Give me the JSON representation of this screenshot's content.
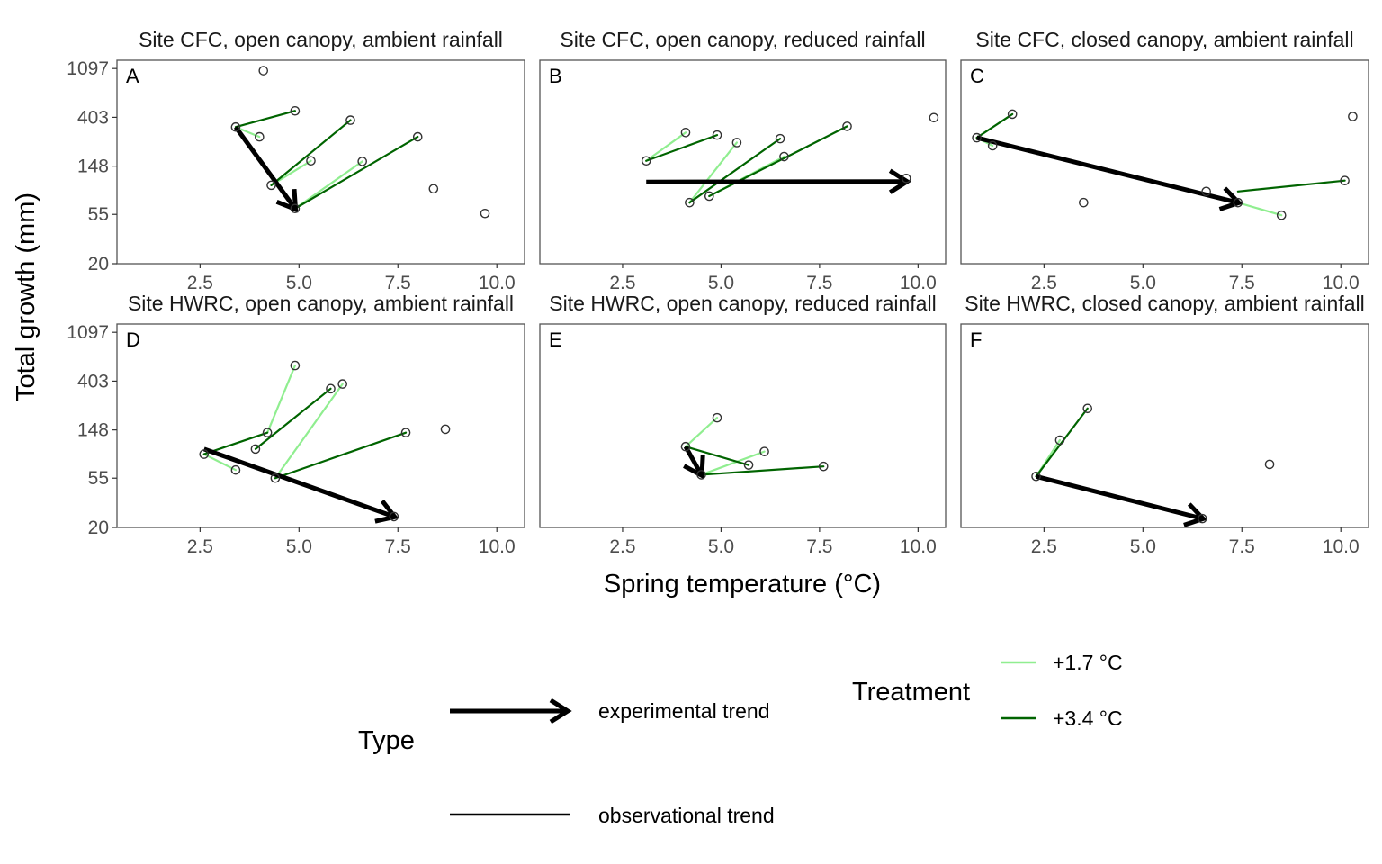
{
  "figure": {
    "xlabel": "Spring temperature (°C)",
    "ylabel": "Total growth (mm)"
  },
  "legend": {
    "type_title": "Type",
    "type_items": [
      "experimental trend",
      "observational trend"
    ],
    "treatment_title": "Treatment",
    "treatment_items": [
      "+1.7 °C",
      "+3.4 °C"
    ]
  },
  "colors": {
    "light_green": "#90ee90",
    "dark_green": "#006400",
    "experimental_arrow": "#000000",
    "point_stroke": "#333333",
    "panel_border": "#555555"
  },
  "chart_data": [
    {
      "type": "scatter",
      "panel": "A",
      "title": "Site CFC, open canopy, ambient rainfall",
      "xlim": [
        0.4,
        10.7
      ],
      "ylim": [
        20,
        1300
      ],
      "y_scale": "log",
      "x_ticks": [
        "2.5",
        "5.0",
        "7.5",
        "10.0"
      ],
      "y_ticks": [
        "20",
        "55",
        "148",
        "403",
        "1097"
      ],
      "points": [
        [
          4.1,
          1050
        ],
        [
          3.4,
          330
        ],
        [
          4.0,
          270
        ],
        [
          4.9,
          460
        ],
        [
          6.3,
          380
        ],
        [
          5.3,
          165
        ],
        [
          6.6,
          163
        ],
        [
          4.3,
          100
        ],
        [
          4.9,
          62
        ],
        [
          8.0,
          270
        ],
        [
          8.4,
          93
        ],
        [
          9.7,
          56
        ]
      ],
      "light_segments": [
        [
          [
            3.4,
            330
          ],
          [
            4.0,
            270
          ]
        ],
        [
          [
            4.3,
            100
          ],
          [
            5.3,
            165
          ]
        ],
        [
          [
            4.9,
            62
          ],
          [
            6.6,
            163
          ]
        ]
      ],
      "dark_segments": [
        [
          [
            3.4,
            330
          ],
          [
            4.9,
            460
          ]
        ],
        [
          [
            4.3,
            100
          ],
          [
            6.3,
            380
          ]
        ],
        [
          [
            4.9,
            62
          ],
          [
            8.0,
            270
          ]
        ]
      ],
      "arrow": [
        [
          3.4,
          330
        ],
        [
          4.9,
          62
        ]
      ]
    },
    {
      "type": "scatter",
      "panel": "B",
      "title": "Site CFC, open canopy, reduced rainfall",
      "xlim": [
        0.4,
        10.7
      ],
      "ylim": [
        20,
        1300
      ],
      "y_scale": "log",
      "x_ticks": [
        "2.5",
        "5.0",
        "7.5",
        "10.0"
      ],
      "y_ticks": [
        "20",
        "55",
        "148",
        "403",
        "1097"
      ],
      "points": [
        [
          3.1,
          165
        ],
        [
          4.1,
          295
        ],
        [
          4.9,
          280
        ],
        [
          5.4,
          240
        ],
        [
          6.5,
          260
        ],
        [
          6.6,
          180
        ],
        [
          4.2,
          70
        ],
        [
          4.7,
          80
        ],
        [
          8.2,
          335
        ],
        [
          10.4,
          400
        ],
        [
          9.7,
          115
        ]
      ],
      "light_segments": [
        [
          [
            3.1,
            165
          ],
          [
            4.1,
            295
          ]
        ],
        [
          [
            4.2,
            70
          ],
          [
            5.4,
            240
          ]
        ],
        [
          [
            4.7,
            80
          ],
          [
            6.6,
            180
          ]
        ]
      ],
      "dark_segments": [
        [
          [
            3.1,
            165
          ],
          [
            4.9,
            280
          ]
        ],
        [
          [
            4.2,
            70
          ],
          [
            6.5,
            260
          ]
        ],
        [
          [
            4.7,
            80
          ],
          [
            8.2,
            335
          ]
        ]
      ],
      "arrow": [
        [
          3.1,
          107
        ],
        [
          9.7,
          108
        ]
      ]
    },
    {
      "type": "scatter",
      "panel": "C",
      "title": "Site CFC, closed canopy, ambient rainfall",
      "xlim": [
        0.4,
        10.7
      ],
      "ylim": [
        20,
        1300
      ],
      "y_scale": "log",
      "x_ticks": [
        "2.5",
        "5.0",
        "7.5",
        "10.0"
      ],
      "y_ticks": [
        "20",
        "55",
        "148",
        "403",
        "1097"
      ],
      "points": [
        [
          0.8,
          265
        ],
        [
          1.2,
          225
        ],
        [
          1.7,
          430
        ],
        [
          3.5,
          70
        ],
        [
          6.6,
          88
        ],
        [
          7.4,
          70
        ],
        [
          8.5,
          54
        ],
        [
          10.1,
          110
        ],
        [
          10.3,
          410
        ]
      ],
      "light_segments": [
        [
          [
            0.8,
            265
          ],
          [
            1.2,
            225
          ]
        ],
        [
          [
            7.4,
            70
          ],
          [
            8.5,
            54
          ]
        ]
      ],
      "dark_segments": [
        [
          [
            0.8,
            265
          ],
          [
            1.7,
            430
          ]
        ],
        [
          [
            7.4,
            88
          ],
          [
            10.1,
            110
          ]
        ]
      ],
      "arrow": [
        [
          0.8,
          265
        ],
        [
          7.4,
          70
        ]
      ]
    },
    {
      "type": "scatter",
      "panel": "D",
      "title": "Site HWRC, open canopy, ambient rainfall",
      "xlim": [
        0.4,
        10.7
      ],
      "ylim": [
        20,
        1300
      ],
      "y_scale": "log",
      "x_ticks": [
        "2.5",
        "5.0",
        "7.5",
        "10.0"
      ],
      "y_ticks": [
        "20",
        "55",
        "148",
        "403",
        "1097"
      ],
      "points": [
        [
          2.6,
          90
        ],
        [
          3.4,
          65
        ],
        [
          4.9,
          555
        ],
        [
          4.2,
          140
        ],
        [
          3.9,
          100
        ],
        [
          5.8,
          345
        ],
        [
          6.1,
          380
        ],
        [
          4.4,
          55
        ],
        [
          7.7,
          140
        ],
        [
          8.7,
          150
        ],
        [
          7.4,
          25
        ]
      ],
      "light_segments": [
        [
          [
            2.6,
            90
          ],
          [
            3.4,
            65
          ]
        ],
        [
          [
            4.2,
            140
          ],
          [
            4.9,
            555
          ]
        ],
        [
          [
            4.4,
            55
          ],
          [
            6.1,
            380
          ]
        ]
      ],
      "dark_segments": [
        [
          [
            2.6,
            90
          ],
          [
            4.2,
            140
          ]
        ],
        [
          [
            3.9,
            100
          ],
          [
            5.8,
            345
          ]
        ],
        [
          [
            4.4,
            55
          ],
          [
            7.7,
            140
          ]
        ]
      ],
      "arrow": [
        [
          2.6,
          100
        ],
        [
          7.4,
          25
        ]
      ]
    },
    {
      "type": "scatter",
      "panel": "E",
      "title": "Site HWRC, open canopy, reduced rainfall",
      "xlim": [
        0.4,
        10.7
      ],
      "ylim": [
        20,
        1300
      ],
      "y_scale": "log",
      "x_ticks": [
        "2.5",
        "5.0",
        "7.5",
        "10.0"
      ],
      "y_ticks": [
        "20",
        "55",
        "148",
        "403",
        "1097"
      ],
      "points": [
        [
          4.1,
          105
        ],
        [
          4.9,
          190
        ],
        [
          4.5,
          59
        ],
        [
          6.1,
          95
        ],
        [
          5.7,
          72
        ],
        [
          7.6,
          70
        ]
      ],
      "light_segments": [
        [
          [
            4.1,
            105
          ],
          [
            4.9,
            190
          ]
        ],
        [
          [
            4.5,
            59
          ],
          [
            6.1,
            95
          ]
        ]
      ],
      "dark_segments": [
        [
          [
            4.1,
            105
          ],
          [
            5.7,
            72
          ]
        ],
        [
          [
            4.5,
            59
          ],
          [
            7.6,
            70
          ]
        ]
      ],
      "arrow": [
        [
          4.1,
          105
        ],
        [
          4.5,
          59
        ]
      ]
    },
    {
      "type": "scatter",
      "panel": "F",
      "title": "Site HWRC, closed canopy, ambient rainfall",
      "xlim": [
        0.4,
        10.7
      ],
      "ylim": [
        20,
        1300
      ],
      "y_scale": "log",
      "x_ticks": [
        "2.5",
        "5.0",
        "7.5",
        "10.0"
      ],
      "y_ticks": [
        "20",
        "55",
        "148",
        "403",
        "1097"
      ],
      "points": [
        [
          2.3,
          57
        ],
        [
          2.9,
          120
        ],
        [
          3.6,
          230
        ],
        [
          8.2,
          73
        ],
        [
          6.5,
          24
        ]
      ],
      "light_segments": [
        [
          [
            2.3,
            57
          ],
          [
            2.9,
            120
          ]
        ]
      ],
      "dark_segments": [
        [
          [
            2.3,
            57
          ],
          [
            3.6,
            230
          ]
        ]
      ],
      "arrow": [
        [
          2.3,
          57
        ],
        [
          6.5,
          24
        ]
      ]
    }
  ]
}
